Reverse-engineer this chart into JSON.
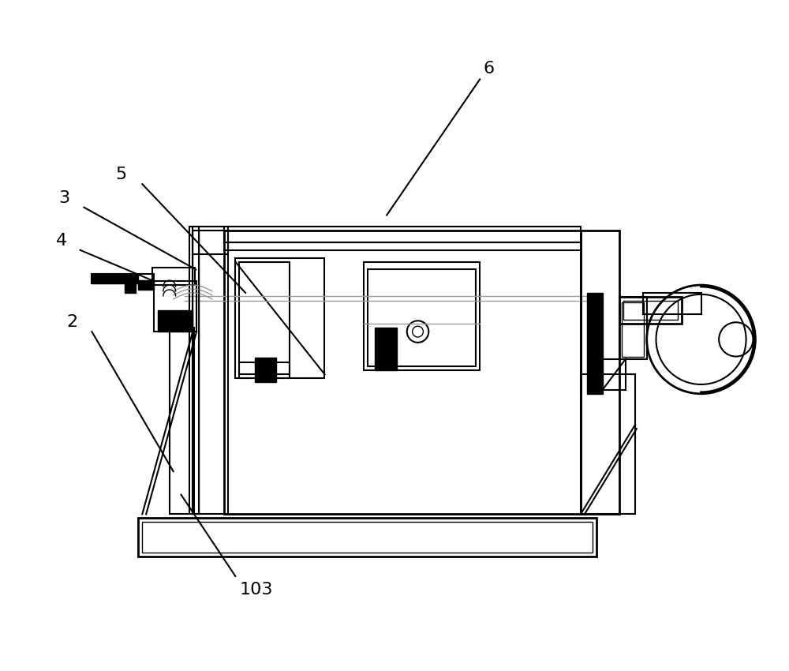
{
  "bg_color": "#ffffff",
  "line_color": "#000000",
  "gray_line_color": "#999999",
  "figsize": [
    10.0,
    8.5
  ],
  "dpi": 100,
  "lw_main": 2.0,
  "lw_med": 1.5,
  "lw_thin": 1.0,
  "label_fontsize": 16
}
